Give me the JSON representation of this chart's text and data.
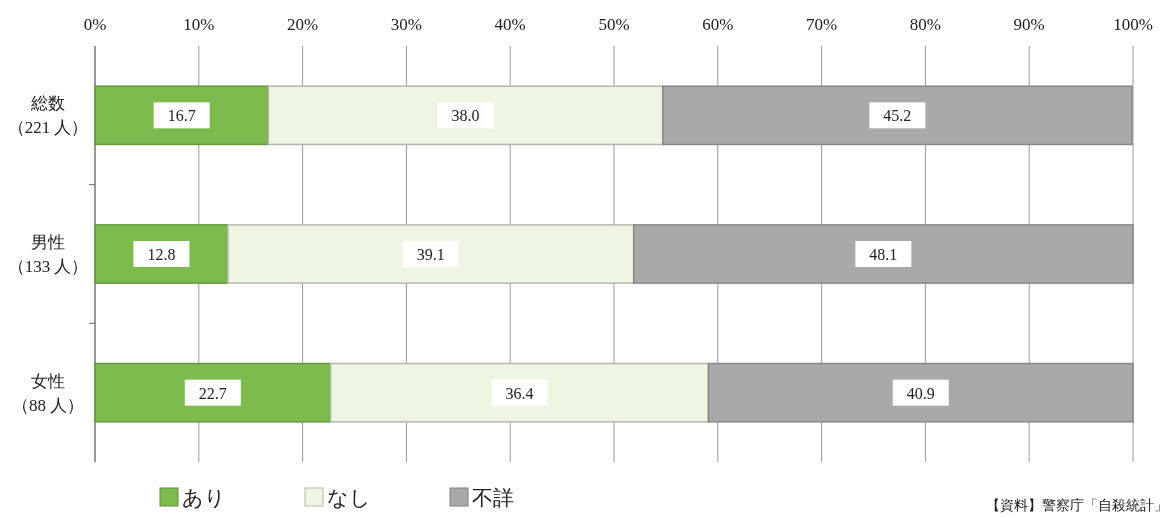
{
  "chart_data": {
    "type": "bar",
    "orientation": "horizontal",
    "stacked": true,
    "categories": [
      "総数（221 人）",
      "男性（133 人）",
      "女性（88 人）"
    ],
    "series": [
      {
        "name": "あり",
        "color": "#7dbb4e",
        "values": [
          16.7,
          12.8,
          22.7
        ],
        "value_labels": [
          "16.7",
          "12.8",
          "22.7"
        ]
      },
      {
        "name": "なし",
        "color": "#eef5e2",
        "values": [
          38.0,
          39.1,
          36.4
        ],
        "value_labels": [
          "38.0",
          "39.1",
          "36.4"
        ]
      },
      {
        "name": "不詳",
        "color": "#a9a9a9",
        "values": [
          45.2,
          48.1,
          40.9
        ],
        "value_labels": [
          "45.2",
          "48.1",
          "40.9"
        ]
      }
    ],
    "xlim": [
      0,
      100
    ],
    "xticks": [
      {
        "value": 0,
        "label": "0%"
      },
      {
        "value": 10,
        "label": "10%"
      },
      {
        "value": 20,
        "label": "20%"
      },
      {
        "value": 30,
        "label": "30%"
      },
      {
        "value": 40,
        "label": "40%"
      },
      {
        "value": 50,
        "label": "50%"
      },
      {
        "value": 60,
        "label": "60%"
      },
      {
        "value": 70,
        "label": "70%"
      },
      {
        "value": 80,
        "label": "80%"
      },
      {
        "value": 90,
        "label": "90%"
      },
      {
        "value": 100,
        "label": "100%"
      }
    ],
    "grid": "x",
    "legend": "bottom",
    "annotations": [
      "【資料】警察庁「自殺統計」"
    ]
  }
}
